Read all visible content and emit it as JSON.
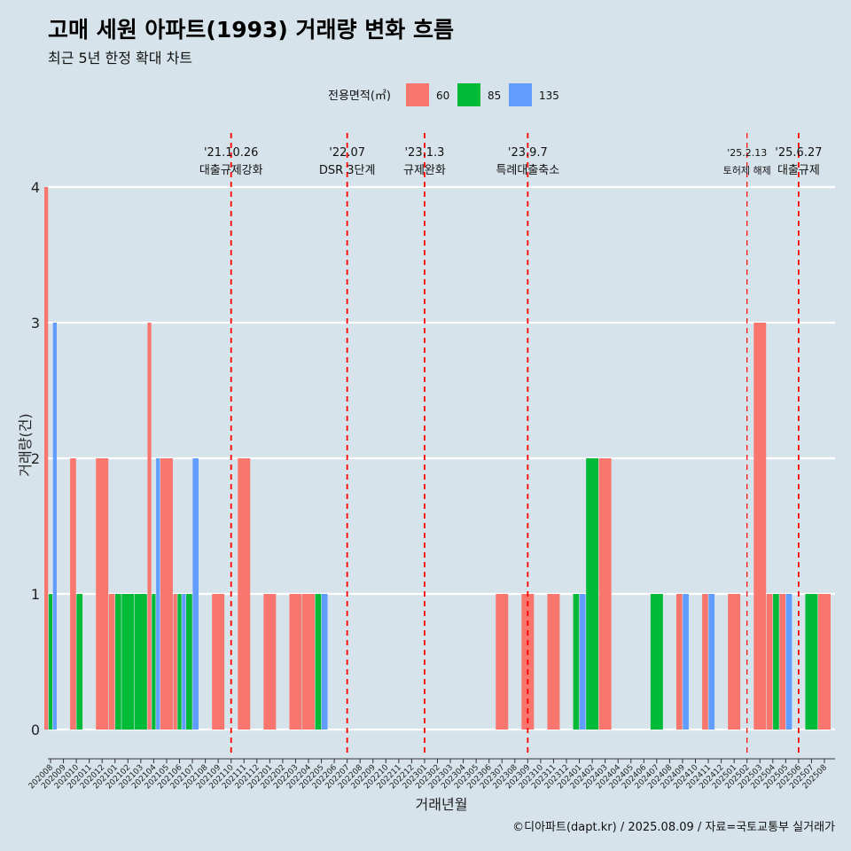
{
  "title": "고매 세원 아파트(1993) 거래량 변화 흐름",
  "subtitle": "최근 5년 한정 확대 차트",
  "caption": "©디아파트(dapt.kr) / 2025.08.09 / 자료=국토교통부 실거래가",
  "legend": {
    "title": "전용면적(㎡)"
  },
  "colors": {
    "60": "#f8766d",
    "85": "#00ba38",
    "135": "#619cff",
    "background": "#d7e3ea",
    "event_line": "#ff0000"
  },
  "chart_data": {
    "type": "bar",
    "xlabel": "거래년월",
    "ylabel": "거래량(건)",
    "ylim": [
      0,
      4
    ],
    "yticks": [
      0,
      1,
      2,
      3,
      4
    ],
    "grid": true,
    "legend_position": "top",
    "categories": [
      "202008",
      "202009",
      "202010",
      "202011",
      "202012",
      "202101",
      "202102",
      "202103",
      "202104",
      "202105",
      "202106",
      "202107",
      "202108",
      "202109",
      "202110",
      "202111",
      "202112",
      "202201",
      "202202",
      "202203",
      "202204",
      "202205",
      "202206",
      "202207",
      "202208",
      "202209",
      "202210",
      "202211",
      "202212",
      "202301",
      "202302",
      "202303",
      "202304",
      "202305",
      "202306",
      "202307",
      "202308",
      "202309",
      "202310",
      "202311",
      "202312",
      "202401",
      "202402",
      "202403",
      "202404",
      "202405",
      "202406",
      "202407",
      "202408",
      "202409",
      "202410",
      "202411",
      "202412",
      "202501",
      "202502",
      "202503",
      "202504",
      "202505",
      "202506",
      "202507",
      "202508"
    ],
    "series": [
      {
        "name": "60",
        "values": [
          4,
          0,
          2,
          0,
          2,
          1,
          0,
          0,
          3,
          2,
          1,
          0,
          0,
          1,
          0,
          2,
          0,
          1,
          0,
          1,
          1,
          0,
          0,
          0,
          0,
          0,
          0,
          0,
          0,
          0,
          0,
          0,
          0,
          0,
          0,
          1,
          0,
          1,
          0,
          1,
          0,
          0,
          0,
          2,
          0,
          0,
          0,
          0,
          0,
          1,
          0,
          1,
          0,
          1,
          0,
          3,
          1,
          1,
          0,
          0,
          1
        ]
      },
      {
        "name": "85",
        "values": [
          1,
          0,
          1,
          0,
          0,
          1,
          1,
          1,
          1,
          0,
          1,
          1,
          0,
          0,
          0,
          0,
          0,
          0,
          0,
          0,
          0,
          1,
          0,
          0,
          0,
          0,
          0,
          0,
          0,
          0,
          0,
          0,
          0,
          0,
          0,
          0,
          0,
          0,
          0,
          0,
          0,
          1,
          2,
          0,
          0,
          0,
          0,
          1,
          0,
          0,
          0,
          0,
          0,
          0,
          0,
          0,
          1,
          0,
          0,
          1,
          0
        ]
      },
      {
        "name": "135",
        "values": [
          3,
          0,
          0,
          0,
          0,
          0,
          0,
          0,
          2,
          0,
          1,
          2,
          0,
          0,
          0,
          0,
          0,
          0,
          0,
          0,
          0,
          1,
          0,
          0,
          0,
          0,
          0,
          0,
          0,
          0,
          0,
          0,
          0,
          0,
          0,
          0,
          0,
          0,
          0,
          0,
          0,
          1,
          0,
          0,
          0,
          0,
          0,
          0,
          0,
          1,
          0,
          1,
          0,
          0,
          0,
          0,
          0,
          1,
          0,
          0,
          0
        ]
      }
    ],
    "events": [
      {
        "x": "202110",
        "label": "'21.10.26",
        "sublabel": "대출규제강화"
      },
      {
        "x": "202207",
        "label": "'22.07",
        "sublabel": "DSR 3단계"
      },
      {
        "x": "202301",
        "label": "'23.1.3",
        "sublabel": "규제완화"
      },
      {
        "x": "202309",
        "label": "'23.9.7",
        "sublabel": "특례대출축소"
      },
      {
        "x": "202502",
        "label": "'25.2.13",
        "sublabel": "토허제 해제"
      },
      {
        "x": "202506",
        "label": "'25.6.27",
        "sublabel": "대출규제"
      }
    ]
  }
}
